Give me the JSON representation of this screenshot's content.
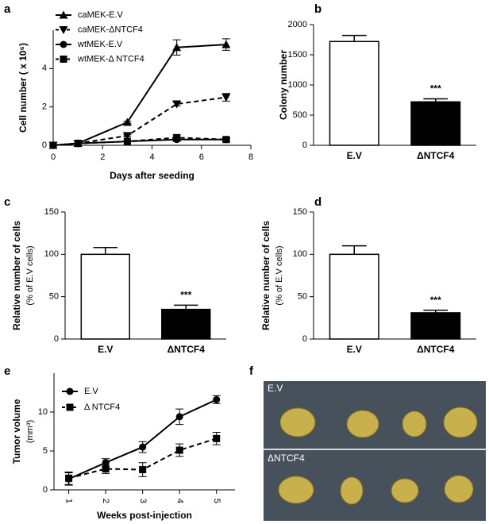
{
  "chart_data": [
    {
      "type": "line",
      "panel": "a",
      "ylabel": [
        "Cell number ( x 10⁶)"
      ],
      "xlabel": "Days after seeding",
      "x": [
        0,
        1,
        3,
        5,
        7
      ],
      "xlim": [
        0,
        8
      ],
      "xticks": [
        0,
        2,
        4,
        6,
        8
      ],
      "ylim": [
        0,
        6
      ],
      "yticks": [
        0,
        2,
        4
      ],
      "series": [
        {
          "name": "caMEK-E.V",
          "color": "#000000",
          "marker": "triangle-up",
          "linestyle": "solid",
          "values": [
            0,
            0.1,
            1.2,
            5.1,
            5.25
          ],
          "errors": [
            0,
            0,
            0.05,
            0.4,
            0.3
          ]
        },
        {
          "name": "caMEK-ΔNTCF4",
          "color": "#000000",
          "marker": "triangle-down",
          "linestyle": "dashed",
          "values": [
            0,
            0.1,
            0.5,
            2.15,
            2.5
          ],
          "errors": [
            0,
            0,
            0.05,
            0.1,
            0.2
          ]
        },
        {
          "name": "wtMEK-E.V",
          "color": "#000000",
          "marker": "circle",
          "linestyle": "solid",
          "values": [
            0,
            0.1,
            0.2,
            0.3,
            0.3
          ],
          "errors": [
            0,
            0,
            0,
            0.1,
            0.05
          ]
        },
        {
          "name": "wtMEK-Δ NTCF4",
          "color": "#000000",
          "marker": "square",
          "linestyle": "dashed",
          "values": [
            0,
            0.1,
            0.2,
            0.4,
            0.3
          ],
          "errors": [
            0,
            0,
            0,
            0.15,
            0.1
          ]
        }
      ]
    },
    {
      "type": "bar",
      "panel": "b",
      "ylabel": [
        "Colony number"
      ],
      "categories": [
        "E.V",
        "ΔNTCF4"
      ],
      "values": [
        1720,
        720
      ],
      "errors": [
        100,
        50
      ],
      "colors": [
        "#ffffff",
        "#000000"
      ],
      "annotation": "***",
      "ylim": [
        0,
        2000
      ],
      "yticks": [
        0,
        500,
        1000,
        1500,
        2000
      ]
    },
    {
      "type": "bar",
      "panel": "c",
      "ylabel": [
        "Relative number of cells",
        "(% of E.V cells)"
      ],
      "categories": [
        "E.V",
        "ΔNTCF4"
      ],
      "values": [
        100,
        35
      ],
      "errors": [
        8,
        5
      ],
      "colors": [
        "#ffffff",
        "#000000"
      ],
      "annotation": "***",
      "ylim": [
        0,
        150
      ],
      "yticks": [
        0,
        50,
        100,
        150
      ]
    },
    {
      "type": "bar",
      "panel": "d",
      "ylabel": [
        "Relative number of cells",
        "(% of E.V cells)"
      ],
      "categories": [
        "E.V",
        "ΔNTCF4"
      ],
      "values": [
        100,
        31
      ],
      "errors": [
        10,
        3
      ],
      "colors": [
        "#ffffff",
        "#000000"
      ],
      "annotation": "***",
      "ylim": [
        0,
        150
      ],
      "yticks": [
        0,
        50,
        100,
        150
      ]
    },
    {
      "type": "line",
      "panel": "e",
      "ylabel": [
        "Tumor volume",
        "(mm³)"
      ],
      "xlabel": "Weeks post-injection",
      "x": [
        1,
        2,
        3,
        4,
        5
      ],
      "xlim": [
        0.6,
        5.5
      ],
      "xticks": [
        1,
        2,
        3,
        4,
        5
      ],
      "ylim": [
        0,
        15
      ],
      "yticks": [
        0,
        5,
        10
      ],
      "series": [
        {
          "name": "E.V",
          "color": "#000000",
          "marker": "circle",
          "linestyle": "solid",
          "values": [
            1.4,
            3.5,
            5.5,
            9.4,
            11.6
          ],
          "errors": [
            0.8,
            0.5,
            0.7,
            1.0,
            0.5
          ]
        },
        {
          "name": "Δ NTCF4",
          "color": "#000000",
          "marker": "square",
          "linestyle": "dashed",
          "values": [
            1.5,
            2.7,
            2.6,
            5.1,
            6.6
          ],
          "errors": [
            0.8,
            0.6,
            0.9,
            0.8,
            0.8
          ]
        }
      ]
    }
  ],
  "photo": {
    "panel": "f",
    "labels": [
      "E.V",
      "ΔNTCF4"
    ]
  }
}
